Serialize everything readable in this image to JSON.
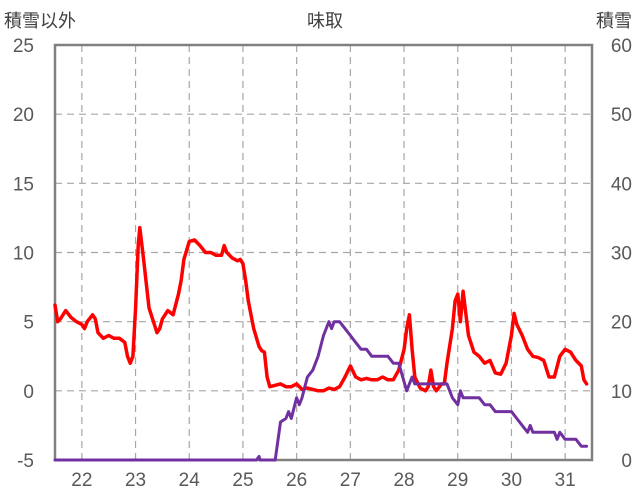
{
  "chart_data": {
    "type": "line",
    "title": "味取",
    "left_axis_label": "積雪以外",
    "right_axis_label": "積雪",
    "x_ticks": [
      "22",
      "23",
      "24",
      "25",
      "26",
      "27",
      "28",
      "29",
      "30",
      "31"
    ],
    "x_range": [
      21.5,
      31.5
    ],
    "y_left": {
      "range": [
        -5,
        25
      ],
      "ticks": [
        -5,
        0,
        5,
        10,
        15,
        20,
        25
      ]
    },
    "y_right": {
      "range": [
        0,
        60
      ],
      "ticks": [
        0,
        10,
        20,
        30,
        40,
        50,
        60
      ]
    },
    "grid": true,
    "series": [
      {
        "axis": "left",
        "color": "#ff0000",
        "points": [
          [
            21.5,
            6.2
          ],
          [
            21.55,
            5.0
          ],
          [
            21.6,
            5.2
          ],
          [
            21.7,
            5.8
          ],
          [
            21.8,
            5.3
          ],
          [
            21.9,
            5.0
          ],
          [
            22.0,
            4.8
          ],
          [
            22.05,
            4.5
          ],
          [
            22.1,
            5.0
          ],
          [
            22.2,
            5.5
          ],
          [
            22.25,
            5.2
          ],
          [
            22.3,
            4.2
          ],
          [
            22.4,
            3.8
          ],
          [
            22.5,
            4.0
          ],
          [
            22.6,
            3.8
          ],
          [
            22.7,
            3.8
          ],
          [
            22.8,
            3.5
          ],
          [
            22.85,
            2.5
          ],
          [
            22.9,
            2.0
          ],
          [
            22.95,
            2.5
          ],
          [
            23.0,
            6.0
          ],
          [
            23.05,
            10.5
          ],
          [
            23.08,
            11.8
          ],
          [
            23.15,
            9.5
          ],
          [
            23.25,
            6.0
          ],
          [
            23.35,
            4.8
          ],
          [
            23.4,
            4.2
          ],
          [
            23.45,
            4.5
          ],
          [
            23.5,
            5.2
          ],
          [
            23.6,
            5.8
          ],
          [
            23.7,
            5.5
          ],
          [
            23.8,
            7.0
          ],
          [
            23.85,
            8.0
          ],
          [
            23.9,
            9.5
          ],
          [
            24.0,
            10.8
          ],
          [
            24.1,
            10.9
          ],
          [
            24.2,
            10.5
          ],
          [
            24.3,
            10.0
          ],
          [
            24.4,
            10.0
          ],
          [
            24.5,
            9.8
          ],
          [
            24.6,
            9.8
          ],
          [
            24.65,
            10.5
          ],
          [
            24.7,
            10.0
          ],
          [
            24.8,
            9.6
          ],
          [
            24.85,
            9.5
          ],
          [
            24.9,
            9.4
          ],
          [
            24.95,
            9.5
          ],
          [
            25.0,
            9.2
          ],
          [
            25.05,
            8.0
          ],
          [
            25.1,
            6.5
          ],
          [
            25.2,
            4.5
          ],
          [
            25.3,
            3.2
          ],
          [
            25.35,
            2.9
          ],
          [
            25.4,
            2.8
          ],
          [
            25.45,
            1.0
          ],
          [
            25.5,
            0.3
          ],
          [
            25.6,
            0.4
          ],
          [
            25.7,
            0.5
          ],
          [
            25.8,
            0.3
          ],
          [
            25.9,
            0.3
          ],
          [
            26.0,
            0.5
          ],
          [
            26.1,
            0.1
          ],
          [
            26.2,
            0.2
          ],
          [
            26.3,
            0.1
          ],
          [
            26.4,
            0.0
          ],
          [
            26.5,
            0.0
          ],
          [
            26.6,
            0.2
          ],
          [
            26.7,
            0.1
          ],
          [
            26.8,
            0.3
          ],
          [
            26.9,
            1.0
          ],
          [
            27.0,
            1.8
          ],
          [
            27.1,
            1.0
          ],
          [
            27.2,
            0.8
          ],
          [
            27.3,
            0.9
          ],
          [
            27.4,
            0.8
          ],
          [
            27.5,
            0.8
          ],
          [
            27.6,
            1.0
          ],
          [
            27.7,
            0.8
          ],
          [
            27.8,
            0.8
          ],
          [
            27.9,
            1.5
          ],
          [
            28.0,
            3.0
          ],
          [
            28.05,
            4.5
          ],
          [
            28.1,
            5.5
          ],
          [
            28.15,
            3.0
          ],
          [
            28.2,
            1.0
          ],
          [
            28.3,
            0.2
          ],
          [
            28.4,
            0.0
          ],
          [
            28.45,
            0.3
          ],
          [
            28.5,
            1.5
          ],
          [
            28.55,
            0.3
          ],
          [
            28.6,
            0.0
          ],
          [
            28.7,
            0.5
          ],
          [
            28.75,
            0.5
          ],
          [
            28.8,
            2.0
          ],
          [
            28.9,
            4.5
          ],
          [
            28.95,
            6.5
          ],
          [
            29.0,
            7.0
          ],
          [
            29.05,
            5.0
          ],
          [
            29.1,
            7.2
          ],
          [
            29.2,
            4.0
          ],
          [
            29.3,
            2.8
          ],
          [
            29.4,
            2.5
          ],
          [
            29.5,
            2.0
          ],
          [
            29.6,
            2.2
          ],
          [
            29.7,
            1.3
          ],
          [
            29.8,
            1.2
          ],
          [
            29.9,
            2.0
          ],
          [
            30.0,
            4.0
          ],
          [
            30.05,
            5.6
          ],
          [
            30.1,
            4.8
          ],
          [
            30.2,
            4.0
          ],
          [
            30.3,
            3.0
          ],
          [
            30.4,
            2.5
          ],
          [
            30.5,
            2.4
          ],
          [
            30.6,
            2.2
          ],
          [
            30.7,
            1.0
          ],
          [
            30.8,
            1.0
          ],
          [
            30.9,
            2.5
          ],
          [
            31.0,
            3.0
          ],
          [
            31.1,
            2.8
          ],
          [
            31.2,
            2.2
          ],
          [
            31.3,
            1.8
          ],
          [
            31.35,
            0.8
          ],
          [
            31.4,
            0.5
          ]
        ]
      },
      {
        "axis": "right",
        "color": "#7030a0",
        "points": [
          [
            21.5,
            0
          ],
          [
            25.25,
            0
          ],
          [
            25.3,
            0.5
          ],
          [
            25.32,
            0
          ],
          [
            25.6,
            0
          ],
          [
            25.7,
            5.5
          ],
          [
            25.8,
            6
          ],
          [
            25.85,
            7
          ],
          [
            25.9,
            6
          ],
          [
            26.0,
            9
          ],
          [
            26.05,
            8
          ],
          [
            26.1,
            9
          ],
          [
            26.2,
            12
          ],
          [
            26.3,
            13
          ],
          [
            26.4,
            15
          ],
          [
            26.5,
            18
          ],
          [
            26.6,
            20
          ],
          [
            26.65,
            19
          ],
          [
            26.7,
            20
          ],
          [
            26.8,
            20
          ],
          [
            26.9,
            19
          ],
          [
            27.0,
            18
          ],
          [
            27.1,
            17
          ],
          [
            27.2,
            16
          ],
          [
            27.3,
            16
          ],
          [
            27.4,
            15
          ],
          [
            27.5,
            15
          ],
          [
            27.6,
            15
          ],
          [
            27.7,
            15
          ],
          [
            27.8,
            14
          ],
          [
            27.9,
            14
          ],
          [
            28.05,
            10
          ],
          [
            28.15,
            12
          ],
          [
            28.2,
            11
          ],
          [
            28.4,
            11
          ],
          [
            28.6,
            11
          ],
          [
            28.8,
            11
          ],
          [
            28.9,
            9
          ],
          [
            29.0,
            8
          ],
          [
            29.05,
            10
          ],
          [
            29.1,
            9
          ],
          [
            29.2,
            9
          ],
          [
            29.3,
            9
          ],
          [
            29.4,
            9
          ],
          [
            29.5,
            8
          ],
          [
            29.6,
            8
          ],
          [
            29.7,
            7
          ],
          [
            29.8,
            7
          ],
          [
            29.9,
            7
          ],
          [
            30.0,
            7
          ],
          [
            30.1,
            6
          ],
          [
            30.2,
            5
          ],
          [
            30.3,
            4
          ],
          [
            30.35,
            5
          ],
          [
            30.4,
            4
          ],
          [
            30.5,
            4
          ],
          [
            30.6,
            4
          ],
          [
            30.7,
            4
          ],
          [
            30.8,
            4
          ],
          [
            30.85,
            3
          ],
          [
            30.9,
            4
          ],
          [
            31.0,
            3
          ],
          [
            31.1,
            3
          ],
          [
            31.2,
            3
          ],
          [
            31.3,
            2
          ],
          [
            31.4,
            2
          ]
        ]
      }
    ]
  }
}
